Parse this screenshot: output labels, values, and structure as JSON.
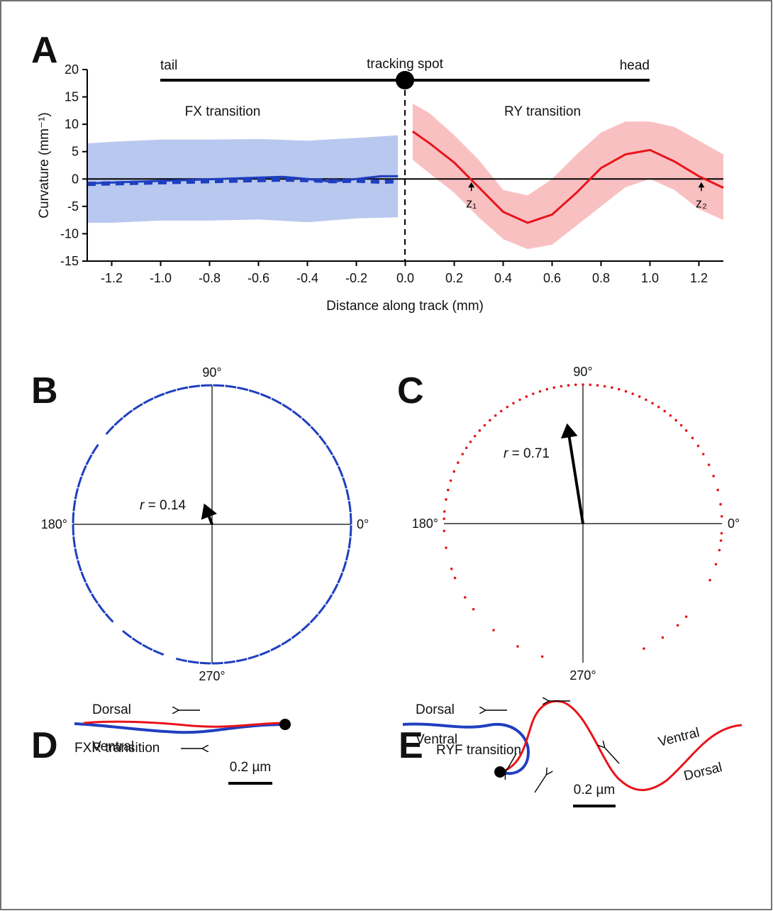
{
  "chart_data": [
    {
      "panel": "A",
      "type": "line",
      "xlabel": "Distance along track (mm)",
      "ylabel": "Curvature (mm⁻¹)",
      "track_labels": [
        "tail",
        "tracking spot",
        "head"
      ],
      "region_labels": [
        "FX transition",
        "RY transition"
      ],
      "zero_crossings": [
        {
          "label": "z₁",
          "x": 0.27
        },
        {
          "label": "z₂",
          "x": 1.21
        }
      ],
      "xlim": [
        -1.3,
        1.3
      ],
      "ylim": [
        -15,
        20
      ],
      "xticks": [
        -1.2,
        {
          "value": -1,
          "label": "-1.0"
        },
        -0.8,
        -0.6,
        -0.4,
        -0.2,
        {
          "value": 0,
          "label": "0.0"
        },
        0.2,
        0.4,
        0.6,
        0.8,
        {
          "value": 1,
          "label": "1.0"
        },
        1.2
      ],
      "yticks": [
        20,
        15,
        10,
        5,
        0,
        -5,
        -10,
        -15
      ],
      "bands": [
        {
          "color": "#b9c8ee",
          "x": [
            -1.3,
            -1.2,
            -1.0,
            -0.8,
            -0.6,
            -0.4,
            -0.2,
            -0.03
          ],
          "upper": [
            6.5,
            6.8,
            7.2,
            7.2,
            7.3,
            7.0,
            7.5,
            8.0
          ],
          "lower": [
            -8,
            -8,
            -7.6,
            -7.6,
            -7.4,
            -7.9,
            -7.2,
            -7.0
          ]
        },
        {
          "color": "#f9c0c2",
          "x": [
            0.03,
            0.1,
            0.2,
            0.3,
            0.4,
            0.5,
            0.6,
            0.7,
            0.8,
            0.9,
            1.0,
            1.1,
            1.2,
            1.3
          ],
          "upper": [
            13.8,
            12,
            8,
            3.5,
            -2,
            -3,
            0,
            4.5,
            8.5,
            10.5,
            10.5,
            9.5,
            7,
            4.5
          ],
          "lower": [
            3.5,
            1,
            -2.5,
            -7,
            -11,
            -12.8,
            -12,
            -8.5,
            -5,
            -1.5,
            0,
            -2,
            -5.5,
            -7.5
          ]
        }
      ],
      "series": [
        {
          "color": "#1f3fbf",
          "dashed": true,
          "x": [
            -1.3,
            -1.1,
            -0.9,
            -0.7,
            -0.5,
            -0.4,
            -0.3,
            -0.2,
            -0.1,
            -0.03
          ],
          "values": [
            -0.9,
            -0.7,
            -0.5,
            -0.3,
            -0.1,
            -0.2,
            -0.4,
            -0.3,
            -0.5,
            -0.4
          ]
        },
        {
          "color": "#1f3fbf",
          "x": [
            -1.3,
            -1.1,
            -0.9,
            -0.7,
            -0.5,
            -0.4,
            -0.3,
            -0.2,
            -0.1,
            -0.03
          ],
          "values": [
            -0.8,
            -0.5,
            -0.2,
            0.1,
            0.4,
            0,
            -0.5,
            0,
            0.5,
            0.5
          ]
        },
        {
          "color": "#e8141b",
          "x": [
            0.03,
            0.1,
            0.2,
            0.3,
            0.4,
            0.5,
            0.6,
            0.7,
            0.8,
            0.9,
            1.0,
            1.1,
            1.2,
            1.3
          ],
          "values": [
            8.7,
            6.5,
            3,
            -1.5,
            -6,
            -8,
            -6.5,
            -2.5,
            2,
            4.5,
            5.3,
            3.2,
            0.5,
            -1.6
          ]
        }
      ]
    },
    {
      "panel": "B",
      "type": "polar",
      "color": "#1f3fbf",
      "angle_ticks": [
        {
          "value": 90,
          "label": "90°"
        },
        {
          "value": 180,
          "label": "180°"
        },
        {
          "value": 0,
          "label": "0°"
        },
        {
          "value": 270,
          "label": "270°"
        }
      ],
      "angles": [
        0,
        5,
        10,
        15,
        20,
        25,
        30,
        35,
        40,
        45,
        50,
        55,
        60,
        65,
        70,
        75,
        80,
        85,
        90,
        95,
        100,
        105,
        110,
        115,
        120,
        125,
        130,
        135,
        145,
        150,
        155,
        160,
        165,
        170,
        175,
        180,
        185,
        190,
        195,
        200,
        205,
        210,
        215,
        220,
        230,
        235,
        240,
        245,
        255,
        260,
        265,
        270,
        275,
        280,
        285,
        290,
        295,
        300,
        305,
        310,
        315,
        320,
        325,
        330,
        335,
        340,
        345,
        350,
        355
      ],
      "vector": {
        "r": 0.14,
        "angle": 111,
        "label": "r = 0.14"
      }
    },
    {
      "panel": "C",
      "type": "polar",
      "color": "#e8141b",
      "angle_ticks": [
        {
          "value": 90,
          "label": "90°"
        },
        {
          "value": 180,
          "label": "180°"
        },
        {
          "value": 0,
          "label": "0°"
        },
        {
          "value": 270,
          "label": "270°"
        }
      ],
      "angles": [
        3,
        8,
        14,
        20,
        25,
        30,
        34,
        38,
        42,
        45,
        48,
        51,
        54,
        57,
        60,
        63,
        66,
        69,
        72,
        75,
        78,
        81,
        84,
        87,
        90,
        93,
        96,
        99,
        102,
        105,
        108,
        111,
        114,
        117,
        120,
        123,
        126,
        129,
        132,
        135,
        138,
        141,
        144,
        147,
        150,
        154,
        158,
        162,
        166,
        170,
        175,
        178,
        183,
        190,
        199,
        203,
        212,
        218,
        230,
        242,
        253,
        296,
        305,
        313,
        318,
        336,
        343,
        349,
        353,
        356
      ],
      "vector": {
        "r": 0.71,
        "angle": 99,
        "label": "r = 0.71"
      }
    }
  ],
  "diagrams": [
    {
      "panel": "D",
      "title": "FXR transition",
      "labels": [
        "Dorsal",
        "Ventral"
      ],
      "scale": "0.2 µm"
    },
    {
      "panel": "E",
      "title": "RYF transition",
      "labels": [
        "Dorsal",
        "Ventral",
        "Ventral",
        "Dorsal"
      ],
      "scale": "0.2 µm"
    }
  ]
}
